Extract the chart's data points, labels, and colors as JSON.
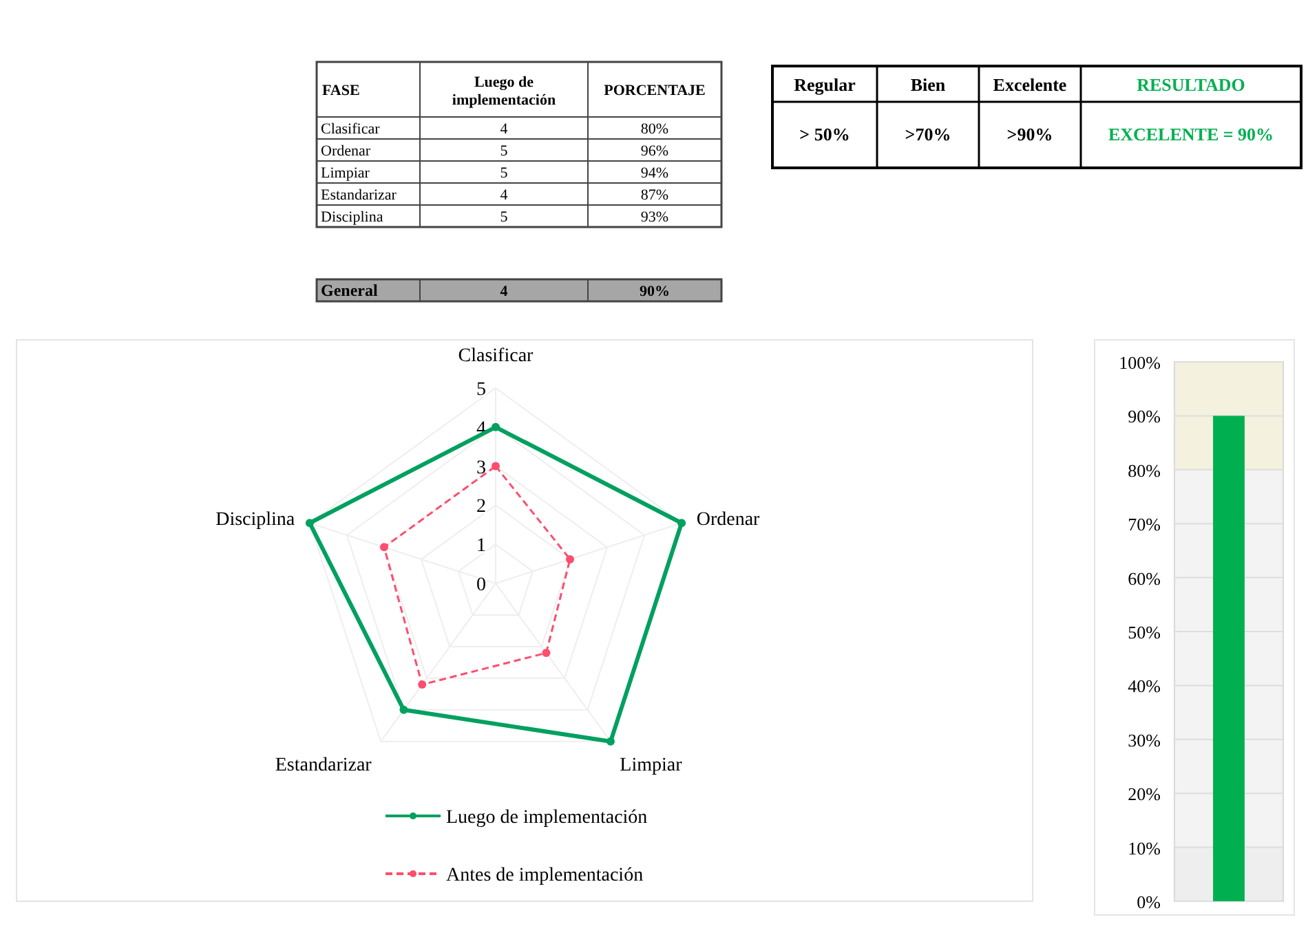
{
  "chart_data": [
    {
      "type": "other",
      "xlabel": "FASE",
      "data_labels": true,
      "categories": [
        "Clasificar",
        "Ordenar",
        "Limpiar",
        "Estandarizar",
        "Disciplina"
      ],
      "series": [
        {
          "name": "Luego de implementación",
          "values": [
            4,
            5,
            5,
            4,
            5
          ]
        },
        {
          "name": "PORCENTAJE",
          "values": [
            80,
            96,
            94,
            87,
            93
          ],
          "value_labels": [
            "80%",
            "96%",
            "94%",
            "87%",
            "93%"
          ]
        }
      ]
    },
    {
      "type": "other",
      "categories": [
        "General"
      ],
      "color": "#a6a6a6",
      "data_labels": true,
      "series": [
        {
          "values": [
            4
          ]
        },
        {
          "values": [
            90
          ],
          "value_labels": [
            "90%"
          ]
        }
      ]
    },
    {
      "type": "other",
      "categories": [
        "Regular",
        "Bien",
        "Excelente",
        "RESULTADO"
      ],
      "values": [
        50,
        70,
        90,
        90
      ],
      "value_labels": [
        "> 50%",
        ">70%",
        ">90%",
        "EXCELENTE = 90%"
      ],
      "colors": [
        "#000000",
        "#000000",
        "#000000",
        "#00b050"
      ]
    },
    {
      "type": "radar",
      "categories": [
        "Clasificar",
        "Ordenar",
        "Limpiar",
        "Estandarizar",
        "Disciplina"
      ],
      "ylim": [
        0,
        5
      ],
      "yticks": [
        0,
        1,
        2,
        3,
        4,
        5
      ],
      "grid": true,
      "legend": "bottom",
      "marker": "circle",
      "series": [
        {
          "name": "Luego de implementación",
          "color": "#00a060",
          "values": [
            4,
            5,
            5,
            4,
            5
          ],
          "line_style": "solid"
        },
        {
          "name": "Antes de implementación",
          "color": "#ff4d6d",
          "values": [
            3,
            2,
            2.2,
            3.2,
            3
          ],
          "line_style": "dashed"
        }
      ]
    },
    {
      "type": "bar",
      "categories": [
        null
      ],
      "values": [
        90
      ],
      "color": "#00b050",
      "ylim": [
        0,
        100
      ],
      "grid": "y",
      "yticks": [
        {
          "value": 0,
          "label": "0%"
        },
        {
          "value": 10,
          "label": "10%"
        },
        {
          "value": 20,
          "label": "20%"
        },
        {
          "value": 30,
          "label": "30%"
        },
        {
          "value": 40,
          "label": "40%"
        },
        {
          "value": 50,
          "label": "50%"
        },
        {
          "value": 60,
          "label": "60%"
        },
        {
          "value": 70,
          "label": "70%"
        },
        {
          "value": 80,
          "label": "80%"
        },
        {
          "value": 90,
          "label": "90%"
        },
        {
          "value": 100,
          "label": "100%"
        }
      ],
      "bands": [
        {
          "axis": "y",
          "from": 0,
          "to": 10,
          "color": "#eeeeee"
        },
        {
          "axis": "y",
          "from": 10,
          "to": 80,
          "color": "#f3f3f3"
        },
        {
          "axis": "y",
          "from": 80,
          "to": 100,
          "color": "#f4f1de"
        }
      ]
    }
  ]
}
